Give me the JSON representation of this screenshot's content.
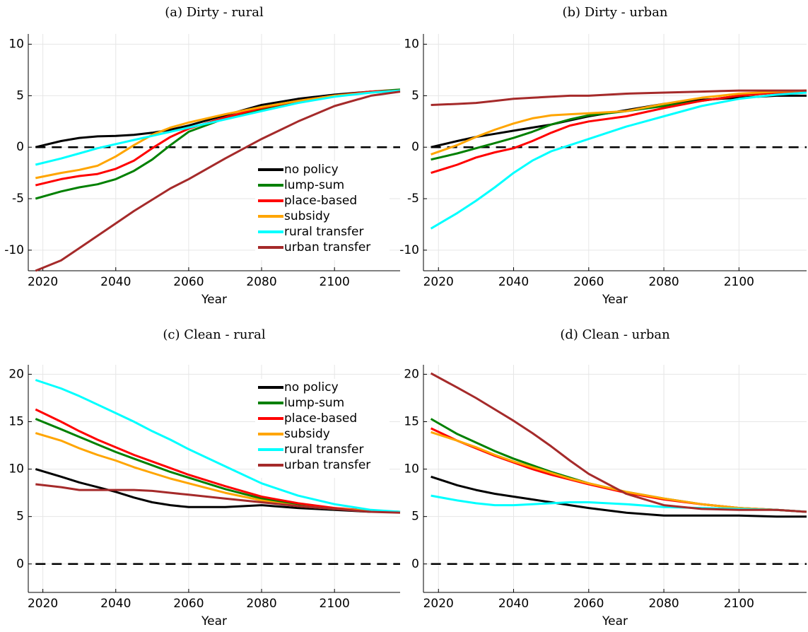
{
  "chart_data": [
    {
      "type": "line",
      "title": "(a) Dirty - rural",
      "xlabel": "Year",
      "x": [
        2018,
        2025,
        2030,
        2035,
        2040,
        2045,
        2050,
        2055,
        2060,
        2070,
        2080,
        2090,
        2100,
        2110,
        2118
      ],
      "xlim": [
        2016,
        2118
      ],
      "xticks": [
        2020,
        2040,
        2060,
        2080,
        2100
      ],
      "ylim": [
        -12,
        11
      ],
      "yticks": [
        -10,
        -5,
        0,
        5,
        10
      ],
      "grid": true,
      "hline": 0,
      "legend": "lower right",
      "series": [
        {
          "name": "no policy",
          "color": "#000000",
          "values": [
            0,
            0.6,
            0.9,
            1.05,
            1.1,
            1.2,
            1.4,
            1.7,
            2.1,
            3.1,
            4.1,
            4.7,
            5.1,
            5.4,
            5.5
          ]
        },
        {
          "name": "lump-sum",
          "color": "#008000",
          "values": [
            -5,
            -4.3,
            -3.9,
            -3.6,
            -3.1,
            -2.3,
            -1.2,
            0.2,
            1.5,
            2.8,
            3.7,
            4.5,
            5.0,
            5.4,
            5.6
          ]
        },
        {
          "name": "place-based",
          "color": "#ff0000",
          "values": [
            -3.7,
            -3.1,
            -2.8,
            -2.6,
            -2.1,
            -1.3,
            -0.1,
            1.0,
            1.8,
            2.9,
            3.8,
            4.5,
            5.0,
            5.4,
            5.5
          ]
        },
        {
          "name": "subsidy",
          "color": "#ffa500",
          "values": [
            -3,
            -2.5,
            -2.2,
            -1.8,
            -0.9,
            0.2,
            1.2,
            1.9,
            2.4,
            3.2,
            3.9,
            4.5,
            5.0,
            5.3,
            5.5
          ]
        },
        {
          "name": "rural transfer",
          "color": "#00ffff",
          "values": [
            -1.7,
            -1.1,
            -0.6,
            -0.1,
            0.3,
            0.7,
            1.1,
            1.5,
            1.9,
            2.7,
            3.5,
            4.3,
            4.9,
            5.3,
            5.5
          ]
        },
        {
          "name": "urban transfer",
          "color": "#a52a2a",
          "values": [
            -12,
            -11,
            -9.8,
            -8.6,
            -7.4,
            -6.2,
            -5.1,
            -4.0,
            -3.1,
            -1.1,
            0.8,
            2.5,
            4.0,
            5.0,
            5.4
          ]
        }
      ]
    },
    {
      "type": "line",
      "title": "(b) Dirty - urban",
      "xlabel": "Year",
      "x": [
        2018,
        2025,
        2030,
        2035,
        2040,
        2045,
        2050,
        2055,
        2060,
        2070,
        2080,
        2090,
        2100,
        2110,
        2118
      ],
      "xlim": [
        2016,
        2118
      ],
      "xticks": [
        2020,
        2040,
        2060,
        2080,
        2100
      ],
      "ylim": [
        -12,
        11
      ],
      "yticks": [
        -10,
        -5,
        0,
        5,
        10
      ],
      "grid": true,
      "hline": 0,
      "series": [
        {
          "name": "no policy",
          "color": "#000000",
          "values": [
            0,
            0.6,
            1.0,
            1.3,
            1.6,
            1.9,
            2.2,
            2.6,
            3.0,
            3.6,
            4.2,
            4.6,
            4.8,
            5.0,
            5.0
          ]
        },
        {
          "name": "lump-sum",
          "color": "#008000",
          "values": [
            -1.2,
            -0.6,
            -0.1,
            0.4,
            0.9,
            1.5,
            2.2,
            2.7,
            3.1,
            3.5,
            4.0,
            4.5,
            5.0,
            5.3,
            5.5
          ]
        },
        {
          "name": "place-based",
          "color": "#ff0000",
          "values": [
            -2.5,
            -1.7,
            -1.0,
            -0.5,
            -0.1,
            0.6,
            1.4,
            2.1,
            2.5,
            3.0,
            3.8,
            4.5,
            5.0,
            5.3,
            5.5
          ]
        },
        {
          "name": "subsidy",
          "color": "#ffa500",
          "values": [
            -0.7,
            0.2,
            1.0,
            1.7,
            2.3,
            2.8,
            3.1,
            3.2,
            3.3,
            3.5,
            4.2,
            4.8,
            5.2,
            5.4,
            5.5
          ]
        },
        {
          "name": "rural transfer",
          "color": "#00ffff",
          "values": [
            -7.9,
            -6.4,
            -5.2,
            -3.9,
            -2.5,
            -1.3,
            -0.4,
            0.2,
            0.8,
            2.0,
            3.0,
            4.0,
            4.7,
            5.1,
            5.3
          ]
        },
        {
          "name": "urban transfer",
          "color": "#a52a2a",
          "values": [
            4.1,
            4.2,
            4.3,
            4.5,
            4.7,
            4.8,
            4.9,
            5.0,
            5.0,
            5.2,
            5.3,
            5.4,
            5.5,
            5.5,
            5.5
          ]
        }
      ]
    },
    {
      "type": "line",
      "title": "(c) Clean - rural",
      "xlabel": "Year",
      "x": [
        2018,
        2025,
        2030,
        2035,
        2040,
        2045,
        2050,
        2055,
        2060,
        2070,
        2080,
        2090,
        2100,
        2110,
        2118
      ],
      "xlim": [
        2016,
        2118
      ],
      "xticks": [
        2020,
        2040,
        2060,
        2080,
        2100
      ],
      "ylim": [
        -3,
        21
      ],
      "yticks": [
        0,
        5,
        10,
        15,
        20
      ],
      "grid": true,
      "hline": 0,
      "legend": "upper right",
      "series": [
        {
          "name": "no policy",
          "color": "#000000",
          "values": [
            10,
            9.2,
            8.6,
            8.1,
            7.6,
            7.0,
            6.5,
            6.2,
            6.0,
            6.0,
            6.2,
            5.9,
            5.7,
            5.5,
            5.5
          ]
        },
        {
          "name": "lump-sum",
          "color": "#008000",
          "values": [
            15.3,
            14.2,
            13.4,
            12.6,
            11.8,
            11.1,
            10.4,
            9.7,
            9.1,
            7.9,
            6.9,
            6.2,
            5.8,
            5.6,
            5.5
          ]
        },
        {
          "name": "place-based",
          "color": "#ff0000",
          "values": [
            16.3,
            15.0,
            14.0,
            13.1,
            12.3,
            11.5,
            10.8,
            10.1,
            9.4,
            8.2,
            7.1,
            6.4,
            5.9,
            5.6,
            5.5
          ]
        },
        {
          "name": "subsidy",
          "color": "#ffa500",
          "values": [
            13.8,
            13.0,
            12.2,
            11.5,
            10.9,
            10.2,
            9.6,
            9.0,
            8.5,
            7.5,
            6.7,
            6.1,
            5.8,
            5.6,
            5.5
          ]
        },
        {
          "name": "rural transfer",
          "color": "#00ffff",
          "values": [
            19.4,
            18.5,
            17.7,
            16.8,
            15.9,
            15.0,
            14.0,
            13.1,
            12.1,
            10.3,
            8.5,
            7.2,
            6.3,
            5.7,
            5.5
          ]
        },
        {
          "name": "urban transfer",
          "color": "#a52a2a",
          "values": [
            8.4,
            8.1,
            7.8,
            7.8,
            7.8,
            7.8,
            7.7,
            7.5,
            7.3,
            6.9,
            6.5,
            6.1,
            5.8,
            5.5,
            5.4
          ]
        }
      ]
    },
    {
      "type": "line",
      "title": "(d) Clean - urban",
      "xlabel": "Year",
      "x": [
        2018,
        2025,
        2030,
        2035,
        2040,
        2045,
        2050,
        2055,
        2060,
        2070,
        2080,
        2090,
        2100,
        2110,
        2118
      ],
      "xlim": [
        2016,
        2118
      ],
      "xticks": [
        2020,
        2040,
        2060,
        2080,
        2100
      ],
      "ylim": [
        -3,
        21
      ],
      "yticks": [
        0,
        5,
        10,
        15,
        20
      ],
      "grid": true,
      "hline": 0,
      "series": [
        {
          "name": "no policy",
          "color": "#000000",
          "values": [
            9.2,
            8.3,
            7.8,
            7.4,
            7.1,
            6.8,
            6.5,
            6.2,
            5.9,
            5.4,
            5.1,
            5.1,
            5.1,
            5.0,
            5.0
          ]
        },
        {
          "name": "lump-sum",
          "color": "#008000",
          "values": [
            15.3,
            13.7,
            12.8,
            11.9,
            11.1,
            10.4,
            9.7,
            9.1,
            8.5,
            7.6,
            6.9,
            6.3,
            5.9,
            5.7,
            5.5
          ]
        },
        {
          "name": "place-based",
          "color": "#ff0000",
          "values": [
            14.3,
            13.0,
            12.2,
            11.4,
            10.7,
            10.0,
            9.4,
            8.9,
            8.4,
            7.5,
            6.8,
            6.3,
            5.9,
            5.7,
            5.5
          ]
        },
        {
          "name": "subsidy",
          "color": "#ffa500",
          "values": [
            13.9,
            13.0,
            12.3,
            11.5,
            10.8,
            10.2,
            9.6,
            9.0,
            8.5,
            7.6,
            6.9,
            6.3,
            5.9,
            5.7,
            5.5
          ]
        },
        {
          "name": "rural transfer",
          "color": "#00ffff",
          "values": [
            7.2,
            6.7,
            6.4,
            6.2,
            6.2,
            6.3,
            6.4,
            6.5,
            6.5,
            6.3,
            6.0,
            5.9,
            5.8,
            5.7,
            5.5
          ]
        },
        {
          "name": "urban transfer",
          "color": "#a52a2a",
          "values": [
            20.1,
            18.6,
            17.5,
            16.3,
            15.1,
            13.8,
            12.4,
            10.9,
            9.5,
            7.4,
            6.2,
            5.8,
            5.7,
            5.7,
            5.5
          ]
        }
      ]
    }
  ]
}
